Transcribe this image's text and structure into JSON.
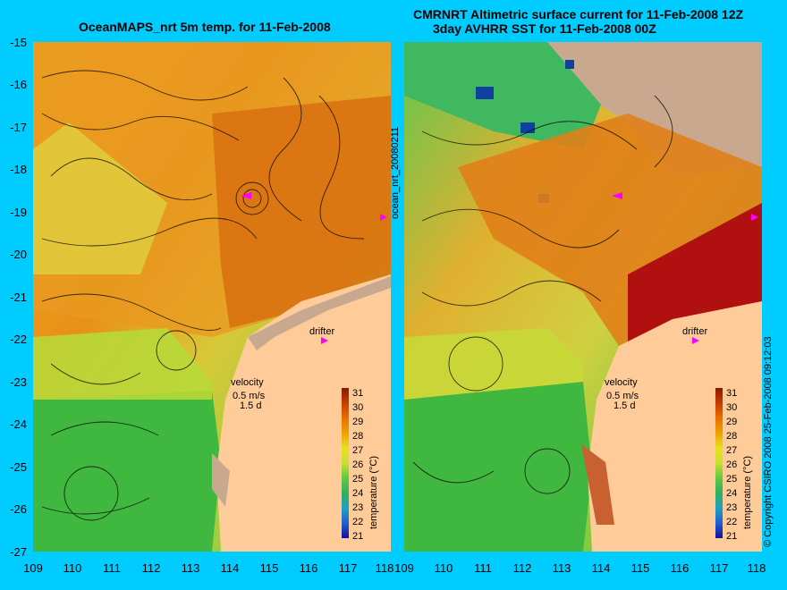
{
  "left_title": "OceanMAPS_nrt 5m temp. for 11-Feb-2008",
  "right_title_line1": "CMRNRT Altimetric surface current for 11-Feb-2008 12Z",
  "right_title_line2": "3day AVHRR SST for 11-Feb-2008 00Z",
  "y_ticks": [
    "-15",
    "-16",
    "-17",
    "-18",
    "-19",
    "-20",
    "-21",
    "-22",
    "-23",
    "-24",
    "-25",
    "-26",
    "-27"
  ],
  "x_ticks": [
    "109",
    "110",
    "111",
    "112",
    "113",
    "114",
    "115",
    "116",
    "117",
    "118"
  ],
  "map_labels": {
    "drifter": "drifter",
    "velocity": "velocity",
    "speed": "0.5 m/s",
    "duration": "1.5 d"
  },
  "colorbar": {
    "label": "temperature (°C)",
    "ticks": [
      "31",
      "30",
      "29",
      "28",
      "27",
      "26",
      "25",
      "24",
      "23",
      "22",
      "21"
    ]
  },
  "side_label": "ocean_nrt_20080211",
  "copyright": "© Copyright CSIRO 2008   25-Feb-2008 09:12:03",
  "colors": {
    "land": "#ffcc99",
    "land_grey": "#c8a990",
    "warm": "#d97a10",
    "hot": "#b01010",
    "mid": "#f0b020",
    "yellow": "#e8e040",
    "green": "#40c040",
    "drifter": "#ff00ff",
    "background": "#00ccff"
  }
}
